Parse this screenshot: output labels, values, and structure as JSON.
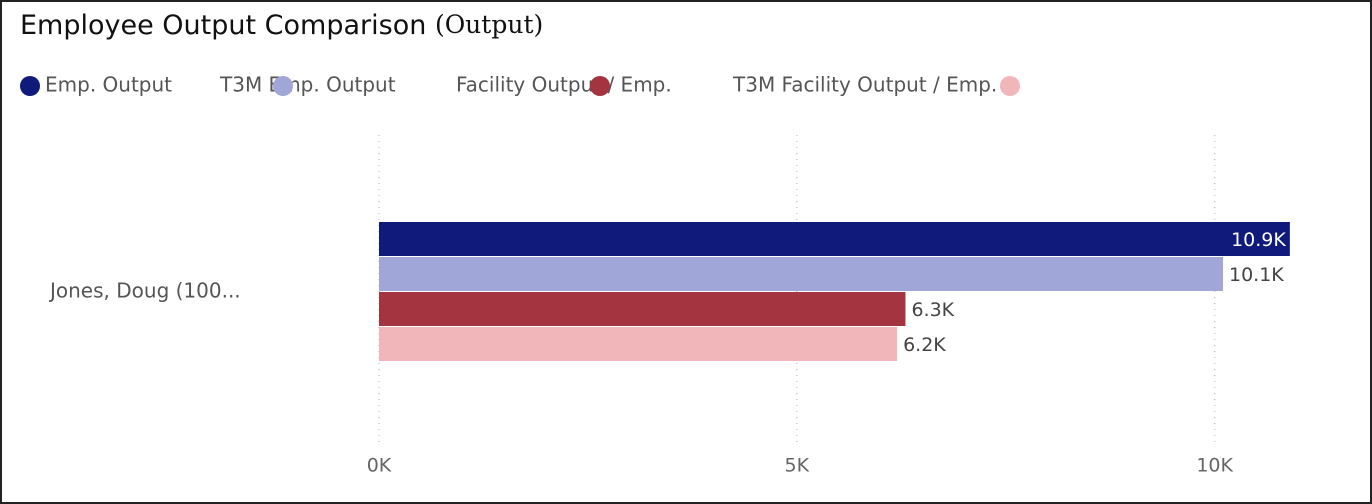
{
  "chart_data": {
    "type": "bar",
    "orientation": "horizontal",
    "title": "Employee Output Comparison",
    "subtitle": "(Output)",
    "categories": [
      "Jones, Doug (100..."
    ],
    "series": [
      {
        "name": "Emp. Output",
        "color": "#0f1a7a",
        "values": [
          10900
        ],
        "value_labels": [
          "10.9K"
        ]
      },
      {
        "name": "T3M Emp. Output",
        "color": "#a0a6d8",
        "values": [
          10100
        ],
        "value_labels": [
          "10.1K"
        ]
      },
      {
        "name": "Facility Output / Emp.",
        "color": "#a33440",
        "values": [
          6300
        ],
        "value_labels": [
          "6.3K"
        ]
      },
      {
        "name": "T3M Facility Output / Emp.",
        "color": "#f0b6b9",
        "values": [
          6200
        ],
        "value_labels": [
          "6.2K"
        ]
      }
    ],
    "xlim": [
      0,
      11500
    ],
    "xticks": [
      {
        "value": 0,
        "label": "0K"
      },
      {
        "value": 5000,
        "label": "5K"
      },
      {
        "value": 10000,
        "label": "10K"
      }
    ],
    "grid": true
  }
}
